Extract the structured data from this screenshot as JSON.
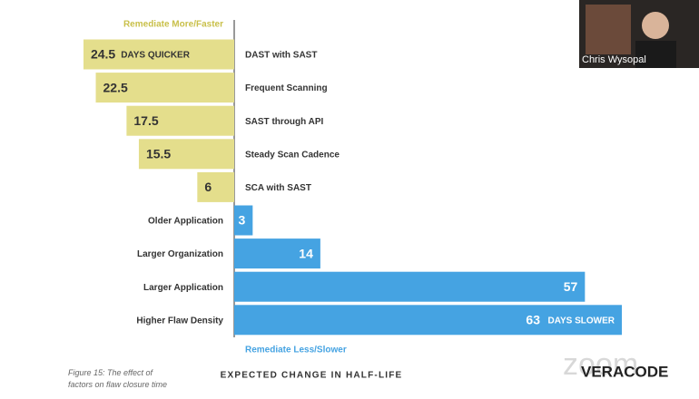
{
  "chart_data": {
    "type": "diverging-bar",
    "categories": [
      "DAST with SAST",
      "Frequent Scanning",
      "SAST through API",
      "Steady Scan Cadence",
      "SCA with SAST",
      "Older Application",
      "Larger Organization",
      "Larger Application",
      "Higher Flaw Density"
    ],
    "series": [
      {
        "name": "Remediate More/Faster",
        "color": "#e4de8c",
        "direction": "left",
        "values": [
          24.5,
          22.5,
          17.5,
          15.5,
          6,
          null,
          null,
          null,
          null
        ]
      },
      {
        "name": "Remediate Less/Slower",
        "color": "#45a3e2",
        "direction": "right",
        "values": [
          null,
          null,
          null,
          null,
          null,
          3,
          14,
          57,
          63
        ]
      }
    ],
    "annotations": [
      "DAYS QUICKER",
      "DAYS SLOWER"
    ],
    "xlabel": "EXPECTED CHANGE IN HALF-LIFE",
    "xlim": [
      0,
      63
    ]
  },
  "caption": "Figure 15: The effect of factors on flaw closure time",
  "speaker": "Chris Wysopal",
  "watermark": "zoom",
  "logo": "VERACODE"
}
